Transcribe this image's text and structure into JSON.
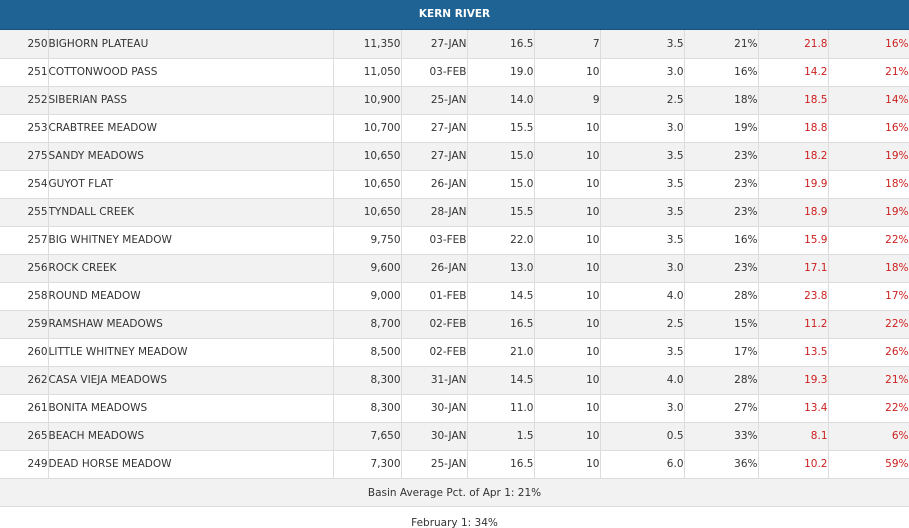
{
  "title": "KERN RIVER",
  "rows": [
    {
      "id": "250",
      "name": "BIGHORN PLATEAU",
      "elev": "11,350",
      "date": "27-JAN",
      "depth": "16.5",
      "density": "7",
      "swe": "3.5",
      "pct1": "21%",
      "hist": "21.8",
      "pct2": "16%"
    },
    {
      "id": "251",
      "name": "COTTONWOOD PASS",
      "elev": "11,050",
      "date": "03-FEB",
      "depth": "19.0",
      "density": "10",
      "swe": "3.0",
      "pct1": "16%",
      "hist": "14.2",
      "pct2": "21%"
    },
    {
      "id": "252",
      "name": "SIBERIAN PASS",
      "elev": "10,900",
      "date": "25-JAN",
      "depth": "14.0",
      "density": "9",
      "swe": "2.5",
      "pct1": "18%",
      "hist": "18.5",
      "pct2": "14%"
    },
    {
      "id": "253",
      "name": "CRABTREE MEADOW",
      "elev": "10,700",
      "date": "27-JAN",
      "depth": "15.5",
      "density": "10",
      "swe": "3.0",
      "pct1": "19%",
      "hist": "18.8",
      "pct2": "16%"
    },
    {
      "id": "275",
      "name": "SANDY MEADOWS",
      "elev": "10,650",
      "date": "27-JAN",
      "depth": "15.0",
      "density": "10",
      "swe": "3.5",
      "pct1": "23%",
      "hist": "18.2",
      "pct2": "19%"
    },
    {
      "id": "254",
      "name": "GUYOT FLAT",
      "elev": "10,650",
      "date": "26-JAN",
      "depth": "15.0",
      "density": "10",
      "swe": "3.5",
      "pct1": "23%",
      "hist": "19.9",
      "pct2": "18%"
    },
    {
      "id": "255",
      "name": "TYNDALL CREEK",
      "elev": "10,650",
      "date": "28-JAN",
      "depth": "15.5",
      "density": "10",
      "swe": "3.5",
      "pct1": "23%",
      "hist": "18.9",
      "pct2": "19%"
    },
    {
      "id": "257",
      "name": "BIG WHITNEY MEADOW",
      "elev": "9,750",
      "date": "03-FEB",
      "depth": "22.0",
      "density": "10",
      "swe": "3.5",
      "pct1": "16%",
      "hist": "15.9",
      "pct2": "22%"
    },
    {
      "id": "256",
      "name": "ROCK CREEK",
      "elev": "9,600",
      "date": "26-JAN",
      "depth": "13.0",
      "density": "10",
      "swe": "3.0",
      "pct1": "23%",
      "hist": "17.1",
      "pct2": "18%"
    },
    {
      "id": "258",
      "name": "ROUND MEADOW",
      "elev": "9,000",
      "date": "01-FEB",
      "depth": "14.5",
      "density": "10",
      "swe": "4.0",
      "pct1": "28%",
      "hist": "23.8",
      "pct2": "17%"
    },
    {
      "id": "259",
      "name": "RAMSHAW MEADOWS",
      "elev": "8,700",
      "date": "02-FEB",
      "depth": "16.5",
      "density": "10",
      "swe": "2.5",
      "pct1": "15%",
      "hist": "11.2",
      "pct2": "22%"
    },
    {
      "id": "260",
      "name": "LITTLE WHITNEY MEADOW",
      "elev": "8,500",
      "date": "02-FEB",
      "depth": "21.0",
      "density": "10",
      "swe": "3.5",
      "pct1": "17%",
      "hist": "13.5",
      "pct2": "26%"
    },
    {
      "id": "262",
      "name": "CASA VIEJA MEADOWS",
      "elev": "8,300",
      "date": "31-JAN",
      "depth": "14.5",
      "density": "10",
      "swe": "4.0",
      "pct1": "28%",
      "hist": "19.3",
      "pct2": "21%"
    },
    {
      "id": "261",
      "name": "BONITA MEADOWS",
      "elev": "8,300",
      "date": "30-JAN",
      "depth": "11.0",
      "density": "10",
      "swe": "3.0",
      "pct1": "27%",
      "hist": "13.4",
      "pct2": "22%"
    },
    {
      "id": "265",
      "name": "BEACH MEADOWS",
      "elev": "7,650",
      "date": "30-JAN",
      "depth": "1.5",
      "density": "10",
      "swe": "0.5",
      "pct1": "33%",
      "hist": "8.1",
      "pct2": "6%"
    },
    {
      "id": "249",
      "name": "DEAD HORSE MEADOW",
      "elev": "7,300",
      "date": "25-JAN",
      "depth": "16.5",
      "density": "10",
      "swe": "6.0",
      "pct1": "36%",
      "hist": "10.2",
      "pct2": "59%"
    }
  ],
  "summary": {
    "basin_average": "Basin Average Pct. of Apr 1: 21%",
    "february": "February 1: 34%"
  },
  "colors": {
    "header_bg": "#1e6393",
    "highlight_text": "#cc1f1f",
    "row_shade": "#f2f2f2"
  }
}
